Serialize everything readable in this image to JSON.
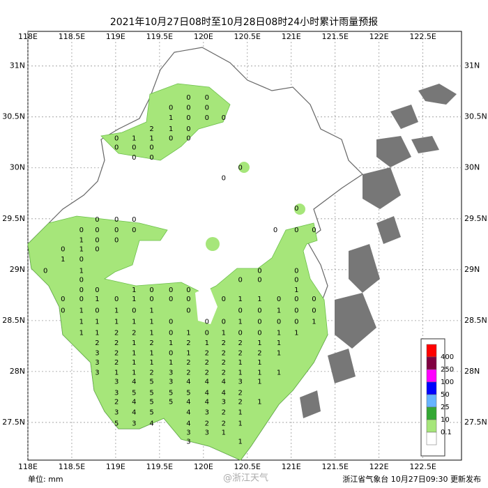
{
  "map": {
    "title": "2021年10月27日08时至10月28日08时24小时累计雨量预报",
    "lonlim": [
      118,
      122.94
    ],
    "latlim": [
      27.13,
      31.34
    ],
    "xticks": [
      {
        "value": 118,
        "label": "118E"
      },
      {
        "value": 118.5,
        "label": "118.5E"
      },
      {
        "value": 119,
        "label": "119E"
      },
      {
        "value": 119.5,
        "label": "119.5E"
      },
      {
        "value": 120,
        "label": "120E"
      },
      {
        "value": 120.5,
        "label": "120.5E"
      },
      {
        "value": 121,
        "label": "121E"
      },
      {
        "value": 121.5,
        "label": "121.5E"
      },
      {
        "value": 122,
        "label": "122E"
      },
      {
        "value": 122.5,
        "label": "122.5E"
      }
    ],
    "yticks": [
      {
        "value": 31,
        "label": "31N"
      },
      {
        "value": 30.5,
        "label": "30.5N"
      },
      {
        "value": 30,
        "label": "30N"
      },
      {
        "value": 29.5,
        "label": "29.5N"
      },
      {
        "value": 29,
        "label": "29N"
      },
      {
        "value": 28.5,
        "label": "28.5N"
      },
      {
        "value": 28,
        "label": "28N"
      },
      {
        "value": 27.5,
        "label": "27.5N"
      }
    ],
    "grid": true,
    "legend": {
      "colors": [
        "#ff0000",
        "#800040",
        "#ff00ff",
        "#0000ff",
        "#66b3ff",
        "#33a833",
        "#a6e67a",
        "#ffffff"
      ],
      "labels": [
        "400",
        "250",
        "100",
        "50",
        "25",
        "10",
        "0.1"
      ]
    },
    "stations": [
      {
        "lat": 30.69,
        "points": [
          [
            119.83,
            0
          ],
          [
            120.04,
            0
          ]
        ]
      },
      {
        "lat": 30.59,
        "points": [
          [
            119.63,
            0
          ],
          [
            119.83,
            0
          ],
          [
            120.04,
            0
          ]
        ]
      },
      {
        "lat": 30.49,
        "points": [
          [
            119.63,
            1
          ],
          [
            119.83,
            0
          ],
          [
            120.04,
            0
          ],
          [
            120.23,
            0
          ]
        ]
      },
      {
        "lat": 30.38,
        "points": [
          [
            119.41,
            2
          ],
          [
            119.63,
            1
          ],
          [
            119.83,
            0
          ]
        ]
      },
      {
        "lat": 30.29,
        "points": [
          [
            119.01,
            0
          ],
          [
            119.21,
            1
          ],
          [
            119.41,
            1
          ],
          [
            119.63,
            0
          ],
          [
            119.83,
            0
          ]
        ]
      },
      {
        "lat": 30.2,
        "points": [
          [
            119.01,
            0
          ],
          [
            119.21,
            0
          ],
          [
            119.41,
            0
          ]
        ]
      },
      {
        "lat": 30.1,
        "points": [
          [
            119.21,
            0
          ],
          [
            119.41,
            0
          ]
        ]
      },
      {
        "lat": 30.0,
        "points": [
          [
            120.42,
            0
          ]
        ]
      },
      {
        "lat": 29.9,
        "points": [
          [
            120.23,
            0
          ]
        ]
      },
      {
        "lat": 29.6,
        "points": [
          [
            121.06,
            0
          ]
        ]
      },
      {
        "lat": 29.49,
        "points": [
          [
            118.79,
            0
          ],
          [
            119.01,
            0
          ],
          [
            119.21,
            0
          ]
        ]
      },
      {
        "lat": 29.39,
        "points": [
          [
            118.61,
            0
          ],
          [
            118.79,
            0
          ],
          [
            119.01,
            0
          ],
          [
            119.21,
            0
          ],
          [
            120.82,
            0
          ],
          [
            121.06,
            0
          ],
          [
            121.26,
            0
          ]
        ]
      },
      {
        "lat": 29.29,
        "points": [
          [
            118.61,
            1
          ],
          [
            118.79,
            0
          ],
          [
            119.01,
            0
          ]
        ]
      },
      {
        "lat": 29.2,
        "points": [
          [
            118.4,
            0
          ],
          [
            118.61,
            1
          ],
          [
            118.79,
            0
          ]
        ]
      },
      {
        "lat": 29.1,
        "points": [
          [
            118.4,
            1
          ],
          [
            118.61,
            0
          ]
        ]
      },
      {
        "lat": 28.99,
        "points": [
          [
            118.2,
            0
          ],
          [
            118.61,
            1
          ],
          [
            120.64,
            0
          ],
          [
            121.06,
            0
          ]
        ]
      },
      {
        "lat": 28.9,
        "points": [
          [
            118.61,
            0
          ],
          [
            120.42,
            0
          ],
          [
            120.64,
            0
          ],
          [
            121.06,
            0
          ]
        ]
      },
      {
        "lat": 28.8,
        "points": [
          [
            118.61,
            0
          ],
          [
            118.79,
            0
          ],
          [
            119.21,
            1
          ],
          [
            119.41,
            0
          ],
          [
            119.63,
            0
          ],
          [
            119.83,
            0
          ],
          [
            121.06,
            1
          ]
        ]
      },
      {
        "lat": 28.71,
        "points": [
          [
            118.4,
            0
          ],
          [
            118.61,
            0
          ],
          [
            118.79,
            1
          ],
          [
            119.01,
            0
          ],
          [
            119.21,
            1
          ],
          [
            119.41,
            0
          ],
          [
            119.63,
            0
          ],
          [
            119.83,
            0
          ],
          [
            120.23,
            0
          ],
          [
            120.42,
            1
          ],
          [
            120.64,
            1
          ],
          [
            120.86,
            0
          ],
          [
            121.06,
            0
          ],
          [
            121.26,
            0
          ]
        ]
      },
      {
        "lat": 28.6,
        "points": [
          [
            118.4,
            0
          ],
          [
            118.61,
            1
          ],
          [
            118.79,
            0
          ],
          [
            119.01,
            1
          ],
          [
            119.21,
            0
          ],
          [
            119.41,
            1
          ],
          [
            119.83,
            0
          ],
          [
            120.42,
            0
          ],
          [
            120.64,
            0
          ],
          [
            120.86,
            1
          ],
          [
            121.06,
            0
          ],
          [
            121.26,
            0
          ]
        ]
      },
      {
        "lat": 28.49,
        "points": [
          [
            118.61,
            1
          ],
          [
            118.79,
            1
          ],
          [
            119.01,
            1
          ],
          [
            119.21,
            1
          ],
          [
            119.41,
            1
          ],
          [
            119.63,
            0
          ],
          [
            120.04,
            0
          ],
          [
            120.23,
            0
          ],
          [
            120.42,
            1
          ],
          [
            120.64,
            0
          ],
          [
            120.86,
            0
          ],
          [
            121.06,
            0
          ],
          [
            121.26,
            1
          ]
        ]
      },
      {
        "lat": 28.38,
        "points": [
          [
            118.61,
            1
          ],
          [
            118.79,
            1
          ],
          [
            119.01,
            2
          ],
          [
            119.21,
            2
          ],
          [
            119.41,
            1
          ],
          [
            119.63,
            0
          ],
          [
            119.83,
            1
          ],
          [
            120.04,
            0
          ],
          [
            120.23,
            1
          ],
          [
            120.42,
            0
          ],
          [
            120.64,
            0
          ],
          [
            120.86,
            1
          ],
          [
            121.06,
            1
          ]
        ]
      },
      {
        "lat": 28.28,
        "points": [
          [
            118.79,
            2
          ],
          [
            119.01,
            2
          ],
          [
            119.21,
            1
          ],
          [
            119.41,
            2
          ],
          [
            119.63,
            1
          ],
          [
            119.83,
            2
          ],
          [
            120.04,
            1
          ],
          [
            120.23,
            2
          ],
          [
            120.42,
            2
          ],
          [
            120.64,
            1
          ],
          [
            120.86,
            1
          ]
        ]
      },
      {
        "lat": 28.18,
        "points": [
          [
            118.79,
            3
          ],
          [
            119.01,
            2
          ],
          [
            119.21,
            1
          ],
          [
            119.41,
            1
          ],
          [
            119.63,
            0
          ],
          [
            119.83,
            1
          ],
          [
            120.04,
            2
          ],
          [
            120.23,
            2
          ],
          [
            120.42,
            2
          ],
          [
            120.64,
            2
          ],
          [
            120.86,
            1
          ]
        ]
      },
      {
        "lat": 28.09,
        "points": [
          [
            118.79,
            3
          ],
          [
            119.01,
            2
          ],
          [
            119.21,
            1
          ],
          [
            119.41,
            1
          ],
          [
            119.63,
            1
          ],
          [
            119.83,
            2
          ],
          [
            120.04,
            2
          ],
          [
            120.23,
            2
          ],
          [
            120.42,
            1
          ],
          [
            120.64,
            1
          ]
        ]
      },
      {
        "lat": 27.99,
        "points": [
          [
            118.79,
            3
          ],
          [
            119.01,
            1
          ],
          [
            119.21,
            1
          ],
          [
            119.41,
            2
          ],
          [
            119.63,
            3
          ],
          [
            119.83,
            2
          ],
          [
            120.04,
            2
          ],
          [
            120.23,
            2
          ],
          [
            120.42,
            1
          ],
          [
            120.64,
            1
          ],
          [
            120.86,
            1
          ]
        ]
      },
      {
        "lat": 27.9,
        "points": [
          [
            119.01,
            3
          ],
          [
            119.21,
            4
          ],
          [
            119.41,
            5
          ],
          [
            119.63,
            3
          ],
          [
            119.83,
            4
          ],
          [
            120.04,
            4
          ],
          [
            120.23,
            4
          ],
          [
            120.42,
            3
          ],
          [
            120.64,
            1
          ]
        ]
      },
      {
        "lat": 27.79,
        "points": [
          [
            119.01,
            3
          ],
          [
            119.21,
            5
          ],
          [
            119.41,
            5
          ],
          [
            119.63,
            5
          ],
          [
            119.83,
            5
          ],
          [
            120.04,
            4
          ],
          [
            120.23,
            4
          ],
          [
            120.42,
            2
          ]
        ]
      },
      {
        "lat": 27.7,
        "points": [
          [
            119.01,
            2
          ],
          [
            119.21,
            4
          ],
          [
            119.41,
            5
          ],
          [
            119.63,
            5
          ],
          [
            119.83,
            4
          ],
          [
            120.04,
            4
          ],
          [
            120.23,
            3
          ],
          [
            120.42,
            2
          ],
          [
            120.64,
            1
          ]
        ]
      },
      {
        "lat": 27.6,
        "points": [
          [
            119.01,
            3
          ],
          [
            119.21,
            4
          ],
          [
            119.41,
            5
          ],
          [
            119.83,
            4
          ],
          [
            120.04,
            3
          ],
          [
            120.23,
            2
          ],
          [
            120.42,
            1
          ]
        ]
      },
      {
        "lat": 27.49,
        "points": [
          [
            119.01,
            5
          ],
          [
            119.21,
            3
          ],
          [
            119.41,
            4
          ],
          [
            119.83,
            4
          ],
          [
            120.04,
            2
          ],
          [
            120.23,
            2
          ],
          [
            120.42,
            1
          ]
        ]
      },
      {
        "lat": 27.4,
        "points": [
          [
            119.83,
            3
          ],
          [
            120.04,
            3
          ],
          [
            120.23,
            1
          ]
        ]
      },
      {
        "lat": 27.31,
        "points": [
          [
            119.83,
            3
          ],
          [
            120.42,
            1
          ]
        ]
      }
    ],
    "unit": "单位:  mm",
    "watermark": "@浙江天气",
    "publisher": "浙江省气象台 10月27日09:30 更新发布"
  }
}
